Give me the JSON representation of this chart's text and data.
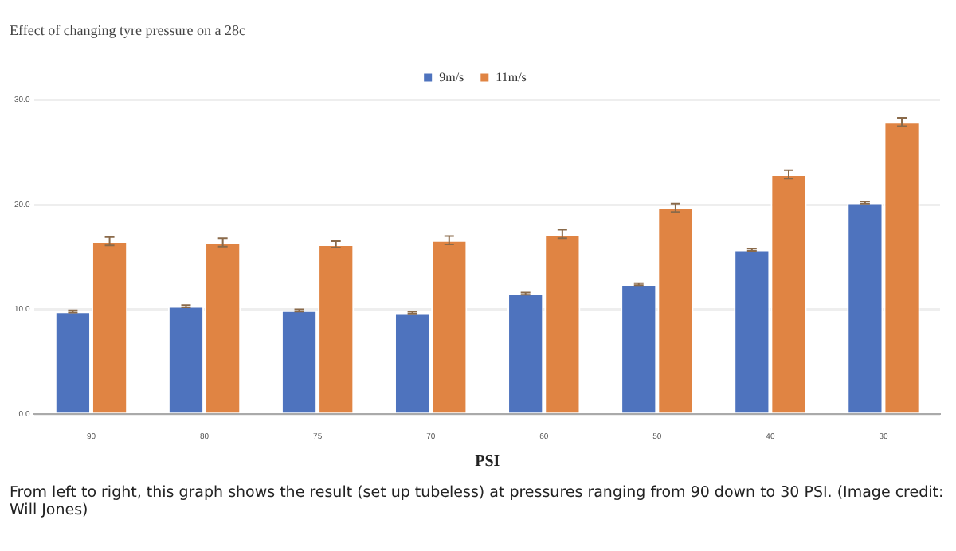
{
  "chart_data": {
    "type": "bar",
    "title": "Effect of changing tyre pressure on a 28c",
    "xlabel": "PSI",
    "categories": [
      "90",
      "80",
      "75",
      "70",
      "60",
      "50",
      "40",
      "30"
    ],
    "series": [
      {
        "name": "9m/s",
        "color": "#4e73be",
        "values": [
          9.8,
          10.3,
          9.9,
          9.7,
          11.5,
          12.4,
          15.7,
          20.2
        ],
        "errors": [
          0.1,
          0.1,
          0.1,
          0.1,
          0.1,
          0.1,
          0.1,
          0.1
        ]
      },
      {
        "name": "11m/s",
        "color": "#e08443",
        "values": [
          16.5,
          16.4,
          16.2,
          16.6,
          17.2,
          19.7,
          22.9,
          27.9
        ],
        "errors": [
          0.4,
          0.4,
          0.3,
          0.4,
          0.4,
          0.4,
          0.4,
          0.4
        ]
      }
    ],
    "ylim": [
      0,
      30
    ],
    "yticks": [
      {
        "value": 0,
        "label": "0.0"
      },
      {
        "value": 10,
        "label": "10.0"
      },
      {
        "value": 20,
        "label": "20.0"
      },
      {
        "value": 30,
        "label": "30.0"
      }
    ],
    "grid": "y",
    "legend": "top",
    "annotations": [
      "From left to right, this graph shows the result (set up tubeless) at pressures ranging from 90 down to 30 PSI.  (Image credit: Will Jones)"
    ]
  }
}
